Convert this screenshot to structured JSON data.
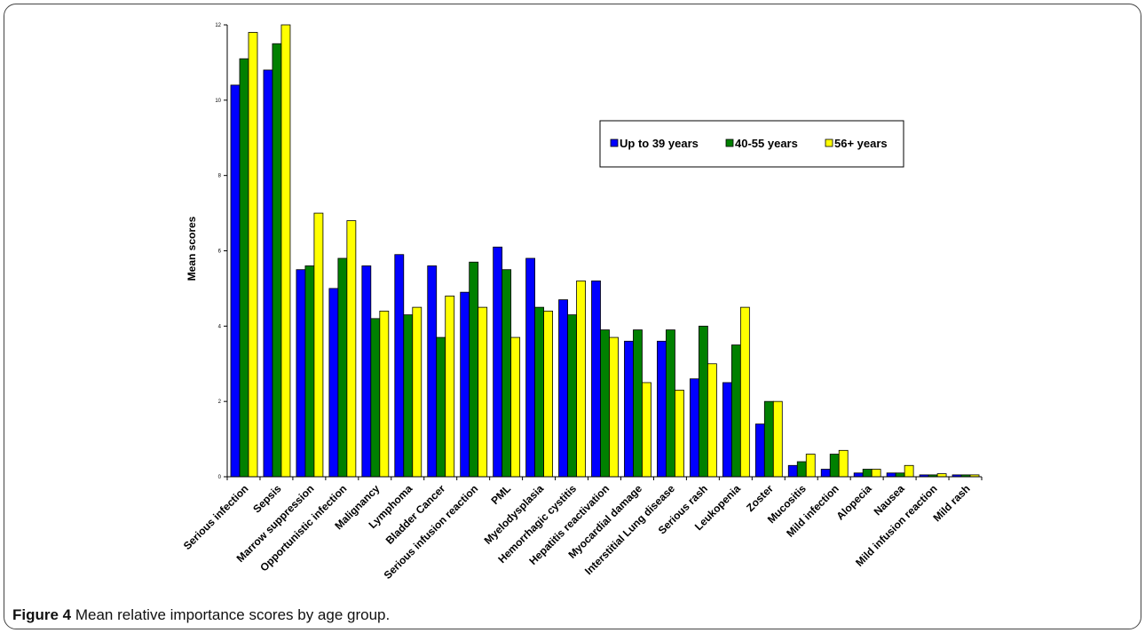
{
  "figure": {
    "label": "Figure 4",
    "caption": "Mean relative importance scores by age group."
  },
  "chart_data": {
    "type": "bar",
    "ylabel": "Mean scores",
    "xlabel": "",
    "ylim": [
      0,
      12
    ],
    "yticks": [
      0,
      2,
      4,
      6,
      8,
      10,
      12
    ],
    "legend_position": "top-right",
    "grid": false,
    "categories": [
      "Serious infection",
      "Sepsis",
      "Marrow suppression",
      "Opportunistic infection",
      "Malignancy",
      "Lymphoma",
      "Bladder Cancer",
      "Serious infusion reaction",
      "PML",
      "Myelodysplasia",
      "Hemorrhagic cystitis",
      "Hepatitis reactivation",
      "Myocardial damage",
      "Interstitial Lung disease",
      "Serious rash",
      "Leukopenia",
      "Zoster",
      "Mucositis",
      "Mild infection",
      "Alopecia",
      "Nausea",
      "Mild infusion reaction",
      "Mild rash"
    ],
    "series": [
      {
        "name": "Up to 39 years",
        "color": "#0000ff",
        "values": [
          10.4,
          10.8,
          5.5,
          5.0,
          5.6,
          5.9,
          5.6,
          4.9,
          6.1,
          5.8,
          4.7,
          5.2,
          3.6,
          3.6,
          2.6,
          2.5,
          1.4,
          0.3,
          0.2,
          0.1,
          0.1,
          0.05,
          0.05
        ]
      },
      {
        "name": "40-55 years",
        "color": "#008000",
        "values": [
          11.1,
          11.5,
          5.6,
          5.8,
          4.2,
          4.3,
          3.7,
          5.7,
          5.5,
          4.5,
          4.3,
          3.9,
          3.9,
          3.9,
          4.0,
          3.5,
          2.0,
          0.4,
          0.6,
          0.2,
          0.1,
          0.05,
          0.05
        ]
      },
      {
        "name": "56+ years",
        "color": "#ffff00",
        "values": [
          11.8,
          12.0,
          7.0,
          6.8,
          4.4,
          4.5,
          4.8,
          4.5,
          3.7,
          4.4,
          5.2,
          3.7,
          2.5,
          2.3,
          3.0,
          4.5,
          2.0,
          0.6,
          0.7,
          0.2,
          0.3,
          0.08,
          0.05
        ]
      }
    ]
  }
}
